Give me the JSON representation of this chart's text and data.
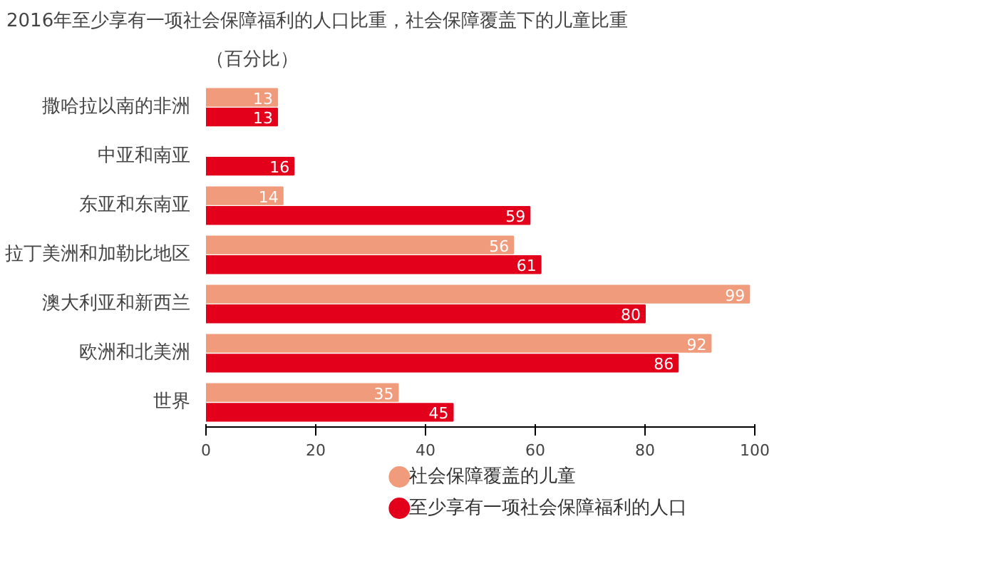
{
  "chart_data": {
    "type": "bar",
    "orientation": "horizontal",
    "title": "2016年至少享有一项社会保障福利的人口比重，社会保障覆盖下的儿童比重",
    "subtitle": "（百分比）",
    "categories": [
      "撒哈拉以南的非洲",
      "中亚和南亚",
      "东亚和东南亚",
      "拉丁美洲和加勒比地区",
      "澳大利亚和新西兰",
      "欧洲和北美洲",
      "世界"
    ],
    "series": [
      {
        "name": "社会保障覆盖的儿童",
        "color": "#f09c7c",
        "values": [
          13,
          null,
          14,
          56,
          99,
          92,
          35
        ]
      },
      {
        "name": "至少享有一项社会保障福利的人口",
        "color": "#e3001b",
        "values": [
          13,
          16,
          59,
          61,
          80,
          86,
          45
        ]
      }
    ],
    "xlim": [
      0,
      100
    ],
    "xticks": [
      0,
      20,
      40,
      60,
      80,
      100
    ],
    "data_labels": true,
    "grid": false,
    "legend": "bottom right",
    "marker": "circle"
  }
}
